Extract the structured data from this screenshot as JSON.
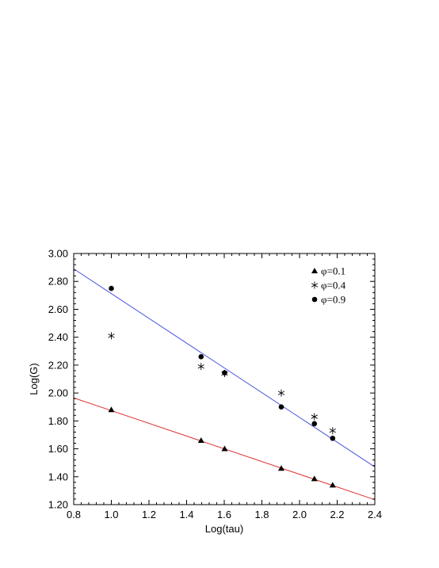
{
  "chart_data": {
    "type": "scatter",
    "xlabel": "Log(tau)",
    "ylabel": "Log(G)",
    "xlim": [
      0.8,
      2.4
    ],
    "ylim": [
      1.2,
      3.0
    ],
    "x_ticks": [
      "0.8",
      "1.0",
      "1.2",
      "1.4",
      "1.6",
      "1.8",
      "2.0",
      "2.2",
      "2.4"
    ],
    "y_ticks": [
      "1.20",
      "1.40",
      "1.60",
      "1.80",
      "2.00",
      "2.20",
      "2.40",
      "2.60",
      "2.80",
      "3.00"
    ],
    "legend_position": "top-right",
    "series": [
      {
        "name": "φ=0.1",
        "marker": "triangle",
        "color": "#000000",
        "points": [
          [
            1.0,
            1.88
          ],
          [
            1.477,
            1.66
          ],
          [
            1.602,
            1.6
          ],
          [
            1.903,
            1.46
          ],
          [
            2.079,
            1.385
          ],
          [
            2.176,
            1.34
          ]
        ]
      },
      {
        "name": "φ=0.4",
        "marker": "asterisk",
        "color": "#000000",
        "points": [
          [
            1.0,
            2.41
          ],
          [
            1.477,
            2.19
          ],
          [
            1.602,
            2.14
          ],
          [
            1.903,
            2.0
          ],
          [
            2.079,
            1.83
          ],
          [
            2.176,
            1.73
          ]
        ]
      },
      {
        "name": "φ=0.9",
        "marker": "circle",
        "color": "#000000",
        "points": [
          [
            1.0,
            2.75
          ],
          [
            1.477,
            2.26
          ],
          [
            1.602,
            2.145
          ],
          [
            1.903,
            1.9
          ],
          [
            2.079,
            1.78
          ],
          [
            2.176,
            1.675
          ]
        ]
      }
    ],
    "fit_lines": [
      {
        "color": "#e03030",
        "x": [
          0.8,
          2.4
        ],
        "y": [
          1.965,
          1.235
        ]
      },
      {
        "color": "#4a55e0",
        "x": [
          0.8,
          2.4
        ],
        "y": [
          2.89,
          1.47
        ]
      }
    ]
  }
}
